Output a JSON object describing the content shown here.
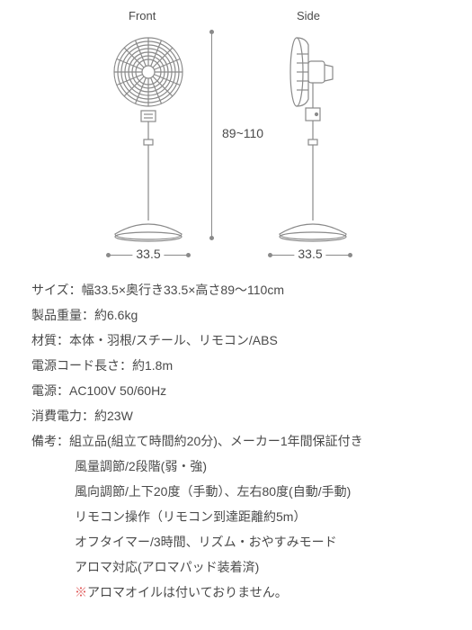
{
  "diagram": {
    "front_label": "Front",
    "side_label": "Side",
    "height_value": "89~110",
    "width_value": "33.5",
    "stroke": "#8a8a8a",
    "stroke_width": 1.2,
    "fan_front": {
      "radius": 38,
      "guard_rings": [
        38,
        34,
        30,
        26,
        22,
        18,
        14,
        10
      ],
      "spokes": 16,
      "cap_r": 7
    },
    "fan_side": {
      "guard_w": 12,
      "guard_h": 76
    }
  },
  "specs": {
    "size_label": "サイズ：幅33.5×奥行き33.5×高さ89〜110cm",
    "weight": "製品重量：約6.6kg",
    "material": "材質：本体・羽根/スチール、リモコン/ABS",
    "cord": "電源コード長さ：約1.8m",
    "power_src": "電源：AC100V 50/60Hz",
    "watt": "消費電力：約23W",
    "notes_head": "備考：組立品(組立て時間約20分)、メーカー1年間保証付き",
    "notes": [
      "風量調節/2段階(弱・強)",
      "風向調節/上下20度（手動）、左右80度(自動/手動)",
      "リモコン操作（リモコン到達距離約5m）",
      "オフタイマー/3時間、リズム・おやすみモード",
      "アロマ対応(アロマパッド装着済)"
    ],
    "warning_prefix": "※",
    "warning_text": "アロマオイルは付いておりません。"
  }
}
